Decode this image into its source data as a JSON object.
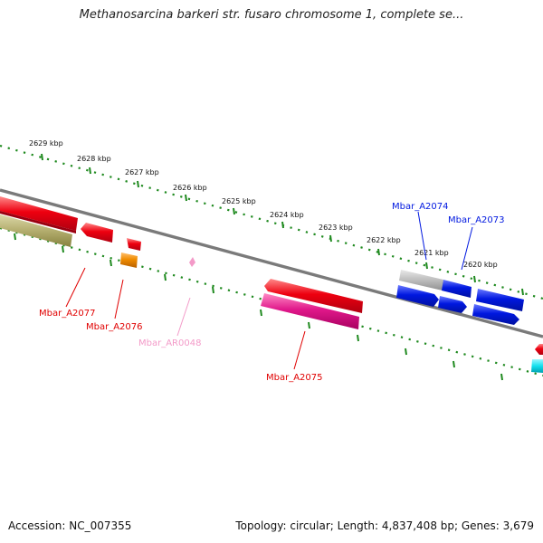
{
  "title": "Methanosarcina barkeri str. fusaro chromosome 1, complete se...",
  "footer": {
    "accession": "Accession: NC_007355",
    "summary": "Topology: circular; Length: 4,837,408 bp; Genes: 3,679"
  },
  "colors": {
    "backbone": "#7a7a7a",
    "ruler": "#1f8a1f",
    "gene_red": "#e8001a",
    "gene_orange": "#f08c00",
    "gene_pink": "#e0188a",
    "gene_light_pink": "#f39ac8",
    "gene_blue": "#0018e0",
    "gene_gray": "#b8b8b8",
    "gene_olive": "#b3ad6e",
    "gene_cyan": "#14e0ee"
  },
  "ruler_labels": [
    "2629 kbp",
    "2628 kbp",
    "2627 kbp",
    "2626 kbp",
    "2625 kbp",
    "2624 kbp",
    "2623 kbp",
    "2622 kbp",
    "2621 kbp",
    "2620 kbp"
  ],
  "gene_labels": [
    {
      "text": "Mbar_A2077",
      "color": "#e00000"
    },
    {
      "text": "Mbar_A2076",
      "color": "#e00000"
    },
    {
      "text": "Mbar_AR0048",
      "color": "#f39ac8"
    },
    {
      "text": "Mbar_A2075",
      "color": "#e00000"
    },
    {
      "text": "Mbar_A2074",
      "color": "#0018e0"
    },
    {
      "text": "Mbar_A2073",
      "color": "#0018e0"
    }
  ]
}
